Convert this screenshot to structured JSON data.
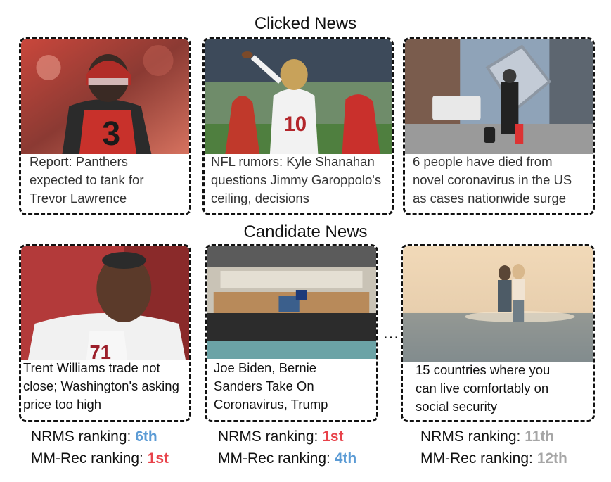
{
  "sections": {
    "clicked_title": "Clicked News",
    "candidate_title": "Candidate News"
  },
  "clicked_news": [
    {
      "lines": [
        "Report: Panthers",
        "expected to tank for",
        "Trevor Lawrence"
      ],
      "image": "football-player-red-jersey-photo"
    },
    {
      "lines": [
        "NFL rumors: Kyle Shanahan",
        "questions Jimmy Garoppolo's",
        "ceiling, decisions"
      ],
      "image": "quarterback-throwing-photo"
    },
    {
      "lines": [
        "6 people have died from",
        "novel coronavirus in the US",
        "as cases nationwide surge"
      ],
      "image": "person-in-mask-street-photo"
    }
  ],
  "candidate_news": [
    {
      "lines": [
        "Trent Williams trade not",
        "close; Washington's asking",
        "price too high"
      ],
      "image": "football-player-white-jersey-photo",
      "nrms_label": "NRMS ranking: ",
      "nrms_value": "6th",
      "mmrec_label": "MM-Rec ranking: ",
      "mmrec_value": "1st"
    },
    {
      "lines": [
        "Joe Biden, Bernie",
        "Sanders Take On",
        "Coronavirus, Trump"
      ],
      "image": "empty-gym-stage-photo",
      "nrms_label": "NRMS ranking: ",
      "nrms_value": "1st",
      "mmrec_label": "MM-Rec ranking: ",
      "mmrec_value": "4th"
    },
    {
      "lines": [
        "15 countries where you",
        "can live comfortably on",
        "social security"
      ],
      "image": "couple-on-beach-photo",
      "nrms_label": "NRMS ranking: ",
      "nrms_value": "11th",
      "mmrec_label": "MM-Rec ranking: ",
      "mmrec_value": "12th"
    }
  ],
  "ellipsis": "...",
  "colors": {
    "rank_red": "#e8424a",
    "rank_blue": "#5b9bd5",
    "rank_gray": "#a6a6a6"
  }
}
